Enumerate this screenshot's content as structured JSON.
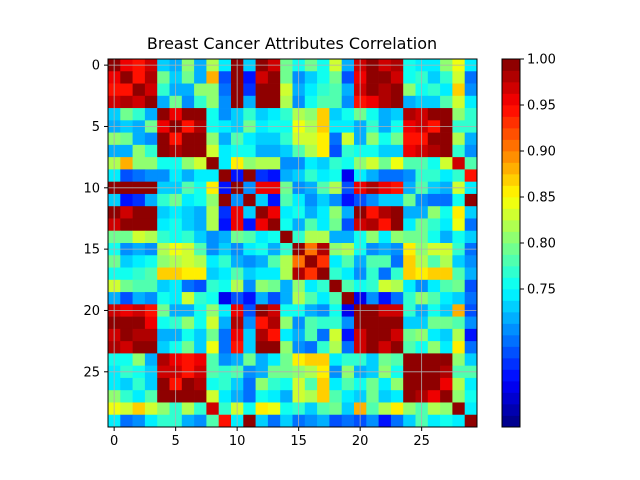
{
  "chart_data": {
    "type": "heatmap",
    "title": "Breast Cancer Attributes Correlation",
    "xlabel": "",
    "ylabel": "",
    "rows": 30,
    "cols": 30,
    "x_ticks": [
      0,
      5,
      10,
      15,
      20,
      25
    ],
    "y_ticks": [
      0,
      5,
      10,
      15,
      20,
      25
    ],
    "x_tick_labels": [
      "0",
      "5",
      "10",
      "15",
      "20",
      "25"
    ],
    "y_tick_labels": [
      "0",
      "5",
      "10",
      "15",
      "20",
      "25"
    ],
    "grid": true,
    "colormap": "jet",
    "color_range": [
      0.6,
      1.0
    ],
    "colorbar_ticks": [
      0.75,
      0.8,
      0.85,
      0.9,
      0.95,
      1.0
    ],
    "colorbar_tick_labels": [
      "0.75",
      "0.80",
      "0.85",
      "0.90",
      "0.95",
      "1.00"
    ],
    "colorbar_levels": 32,
    "group_pattern": [
      0,
      0,
      0,
      0,
      1,
      1,
      1,
      1,
      2,
      3,
      0,
      3,
      0,
      0,
      4,
      5,
      5,
      5,
      6,
      7,
      0,
      0,
      0,
      0,
      1,
      1,
      1,
      1,
      2,
      3
    ],
    "group_strength": [
      [
        0.99,
        0.76,
        0.83,
        0.7,
        0.79,
        0.74,
        0.8,
        0.68
      ],
      [
        0.76,
        0.99,
        0.8,
        0.74,
        0.76,
        0.82,
        0.73,
        0.79
      ],
      [
        0.83,
        0.8,
        0.99,
        0.76,
        0.72,
        0.76,
        0.77,
        0.72
      ],
      [
        0.7,
        0.74,
        0.76,
        0.99,
        0.74,
        0.73,
        0.72,
        0.69
      ],
      [
        0.79,
        0.76,
        0.72,
        0.74,
        0.99,
        0.77,
        0.72,
        0.7
      ],
      [
        0.74,
        0.82,
        0.76,
        0.73,
        0.77,
        0.93,
        0.78,
        0.77
      ],
      [
        0.8,
        0.73,
        0.77,
        0.72,
        0.72,
        0.78,
        0.99,
        0.76
      ],
      [
        0.68,
        0.79,
        0.72,
        0.69,
        0.7,
        0.77,
        0.76,
        0.99
      ]
    ],
    "noise": 0.05
  }
}
